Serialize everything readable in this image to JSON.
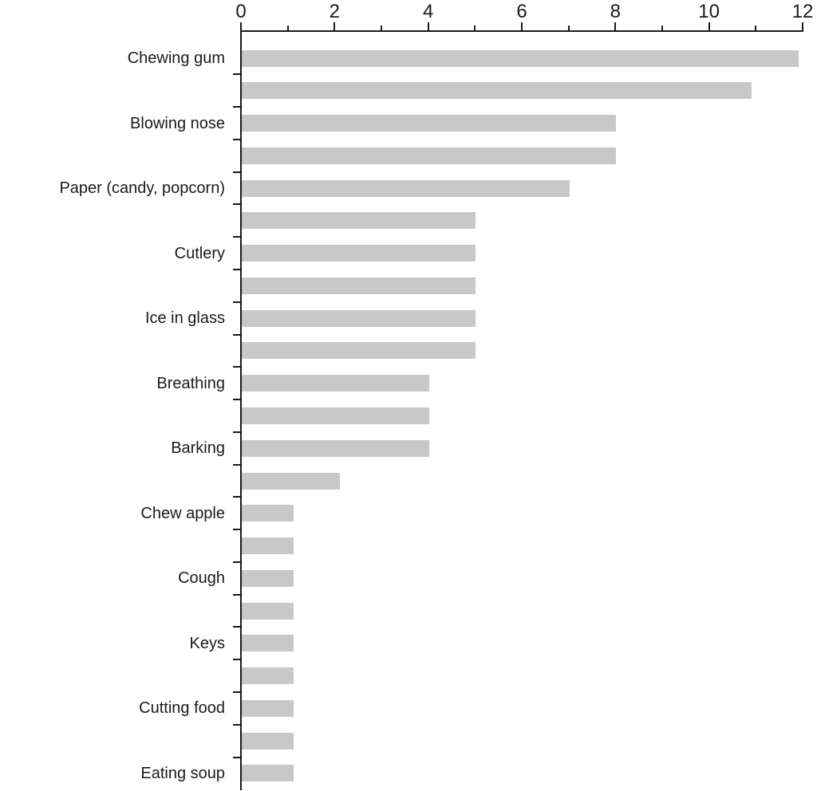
{
  "chart_data": {
    "type": "bar",
    "orientation": "horizontal",
    "title": "",
    "xlabel": "",
    "ylabel": "",
    "xlim": [
      0,
      12
    ],
    "x_ticks": [
      0,
      2,
      4,
      6,
      8,
      10,
      12
    ],
    "x_minor_ticks": [
      1,
      3,
      5,
      7,
      9,
      11
    ],
    "grid": false,
    "legend": false,
    "bar_color": "#c8c8c8",
    "axis_color": "#1a1a1a",
    "bars": [
      {
        "label": "Chewing gum",
        "value": 11.9
      },
      {
        "label": "",
        "value": 10.9
      },
      {
        "label": "Blowing nose",
        "value": 8
      },
      {
        "label": "",
        "value": 8
      },
      {
        "label": "Paper (candy, popcorn)",
        "value": 7
      },
      {
        "label": "",
        "value": 5
      },
      {
        "label": "Cutlery",
        "value": 5
      },
      {
        "label": "",
        "value": 5
      },
      {
        "label": "Ice in glass",
        "value": 5
      },
      {
        "label": "",
        "value": 5
      },
      {
        "label": "Breathing",
        "value": 4
      },
      {
        "label": "",
        "value": 4
      },
      {
        "label": "Barking",
        "value": 4
      },
      {
        "label": "",
        "value": 2.1
      },
      {
        "label": "Chew apple",
        "value": 1.1
      },
      {
        "label": "",
        "value": 1.1
      },
      {
        "label": "Cough",
        "value": 1.1
      },
      {
        "label": "",
        "value": 1.1
      },
      {
        "label": "Keys",
        "value": 1.1
      },
      {
        "label": "",
        "value": 1.1
      },
      {
        "label": "Cutting food",
        "value": 1.1
      },
      {
        "label": "",
        "value": 1.1
      },
      {
        "label": "Eating soup",
        "value": 1.1
      }
    ]
  }
}
